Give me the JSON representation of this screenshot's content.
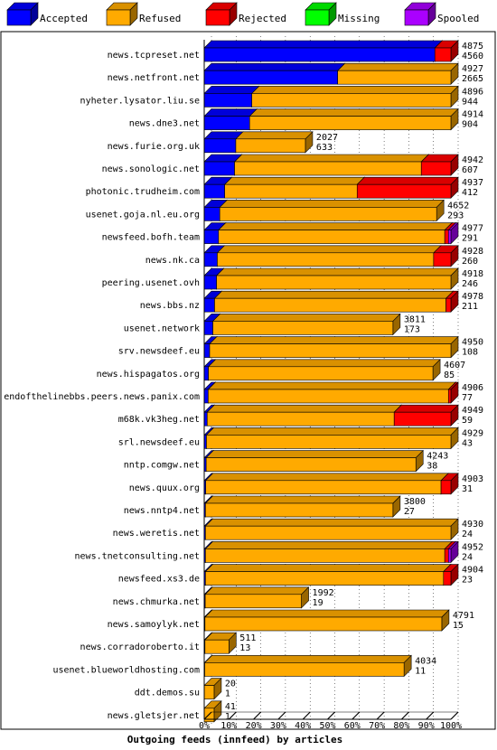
{
  "chart_data": {
    "type": "bar",
    "stacked": true,
    "orientation": "horizontal",
    "title": "Outgoing feeds (innfeed) by articles",
    "xlabel": "",
    "ylabel": "",
    "x_ticks": [
      "0%",
      "10%",
      "20%",
      "30%",
      "40%",
      "50%",
      "60%",
      "70%",
      "80%",
      "90%",
      "100%"
    ],
    "xlim": [
      0,
      100
    ],
    "grid": true,
    "legend_position": "top",
    "legend": [
      {
        "name": "Accepted",
        "color": "#0000ff"
      },
      {
        "name": "Refused",
        "color": "#ffaa00"
      },
      {
        "name": "Rejected",
        "color": "#ff0000"
      },
      {
        "name": "Missing",
        "color": "#00ff00"
      },
      {
        "name": "Spooled",
        "color": "#aa00ff"
      }
    ],
    "feeds": [
      {
        "name": "news.tcpreset.net",
        "offered": "4875",
        "accepted": "4560",
        "pct": [
          93.5,
          0,
          6.5,
          0,
          0
        ]
      },
      {
        "name": "news.netfront.net",
        "offered": "4927",
        "accepted": "2665",
        "pct": [
          54.1,
          45.9,
          0,
          0,
          0
        ]
      },
      {
        "name": "nyheter.lysator.liu.se",
        "offered": "4896",
        "accepted": "944",
        "pct": [
          19.3,
          80.7,
          0,
          0,
          0
        ]
      },
      {
        "name": "news.dne3.net",
        "offered": "4914",
        "accepted": "904",
        "pct": [
          18.4,
          81.6,
          0,
          0,
          0
        ]
      },
      {
        "name": "news.furie.org.uk",
        "offered": "2027",
        "accepted": "633",
        "pct": [
          12.8,
          28.2,
          0,
          0,
          0
        ]
      },
      {
        "name": "news.sonologic.net",
        "offered": "4942",
        "accepted": "607",
        "pct": [
          12.3,
          75.7,
          12,
          0,
          0
        ]
      },
      {
        "name": "photonic.trudheim.com",
        "offered": "4937",
        "accepted": "412",
        "pct": [
          8.3,
          53.7,
          38,
          0,
          0
        ]
      },
      {
        "name": "usenet.goja.nl.eu.org",
        "offered": "4652",
        "accepted": "293",
        "pct": [
          6.3,
          87.9,
          0,
          0,
          0
        ]
      },
      {
        "name": "newsfeed.bofh.team",
        "offered": "4977",
        "accepted": "291",
        "pct": [
          5.8,
          91.7,
          1.5,
          0,
          1
        ]
      },
      {
        "name": "news.nk.ca",
        "offered": "4928",
        "accepted": "260",
        "pct": [
          5.3,
          87.7,
          7,
          0,
          0
        ]
      },
      {
        "name": "peering.usenet.ovh",
        "offered": "4918",
        "accepted": "246",
        "pct": [
          5,
          95,
          0,
          0,
          0
        ]
      },
      {
        "name": "news.bbs.nz",
        "offered": "4978",
        "accepted": "211",
        "pct": [
          4.2,
          93.8,
          2,
          0,
          0
        ]
      },
      {
        "name": "usenet.network",
        "offered": "3811",
        "accepted": "173",
        "pct": [
          3.5,
          73,
          0,
          0,
          0
        ]
      },
      {
        "name": "srv.newsdeef.eu",
        "offered": "4950",
        "accepted": "108",
        "pct": [
          2.2,
          97.8,
          0,
          0,
          0
        ]
      },
      {
        "name": "news.hispagatos.org",
        "offered": "4607",
        "accepted": "85",
        "pct": [
          1.7,
          91,
          0,
          0,
          0
        ]
      },
      {
        "name": "endofthelinebbs.peers.news.panix.com",
        "offered": "4906",
        "accepted": "77",
        "pct": [
          1.6,
          97.4,
          1,
          0,
          0
        ]
      },
      {
        "name": "m68k.vk3heg.net",
        "offered": "4949",
        "accepted": "59",
        "pct": [
          1.2,
          75.8,
          23,
          0,
          0
        ]
      },
      {
        "name": "srl.newsdeef.eu",
        "offered": "4929",
        "accepted": "43",
        "pct": [
          0.9,
          99.1,
          0,
          0,
          0
        ]
      },
      {
        "name": "nntp.comgw.net",
        "offered": "4243",
        "accepted": "38",
        "pct": [
          0.8,
          85,
          0,
          0,
          0
        ]
      },
      {
        "name": "news.quux.org",
        "offered": "4903",
        "accepted": "31",
        "pct": [
          0.6,
          95.4,
          4,
          0,
          0
        ]
      },
      {
        "name": "news.nntp4.net",
        "offered": "3800",
        "accepted": "27",
        "pct": [
          0.5,
          76,
          0,
          0,
          0
        ]
      },
      {
        "name": "news.weretis.net",
        "offered": "4930",
        "accepted": "24",
        "pct": [
          0.5,
          99.5,
          0,
          0,
          0
        ]
      },
      {
        "name": "news.tnetconsulting.net",
        "offered": "4952",
        "accepted": "24",
        "pct": [
          0.5,
          97,
          1.5,
          0,
          1
        ]
      },
      {
        "name": "newsfeed.xs3.de",
        "offered": "4904",
        "accepted": "23",
        "pct": [
          0.5,
          96.5,
          3,
          0,
          0
        ]
      },
      {
        "name": "news.chmurka.net",
        "offered": "1992",
        "accepted": "19",
        "pct": [
          0.4,
          39,
          0,
          0,
          0
        ]
      },
      {
        "name": "news.samoylyk.net",
        "offered": "4791",
        "accepted": "15",
        "pct": [
          0.3,
          96,
          0,
          0,
          0
        ]
      },
      {
        "name": "news.corradoroberto.it",
        "offered": "511",
        "accepted": "13",
        "pct": [
          0.3,
          9.7,
          0,
          0,
          0
        ]
      },
      {
        "name": "usenet.blueworldhosting.com",
        "offered": "4034",
        "accepted": "11",
        "pct": [
          0.2,
          80.8,
          0,
          0,
          0
        ]
      },
      {
        "name": "ddt.demos.su",
        "offered": "20",
        "accepted": "1",
        "pct": [
          0,
          4,
          0,
          0,
          0
        ]
      },
      {
        "name": "news.gletsjer.net",
        "offered": "41",
        "accepted": "1",
        "pct": [
          0,
          4,
          0,
          0,
          0
        ]
      }
    ]
  }
}
